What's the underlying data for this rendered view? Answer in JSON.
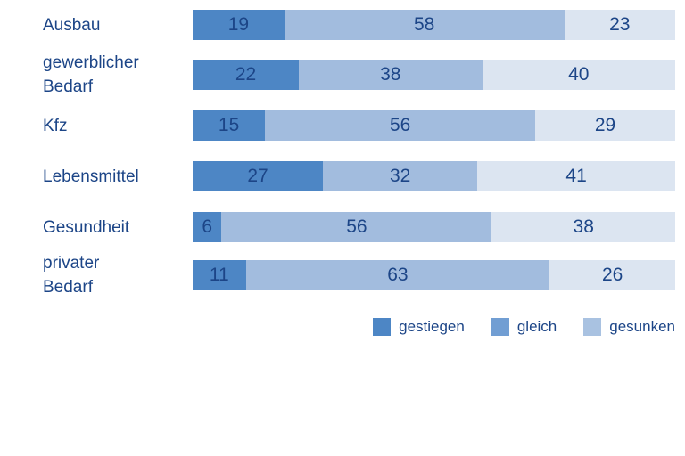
{
  "chart_data": {
    "type": "bar",
    "orientation": "horizontal",
    "stacked": true,
    "title": "",
    "xlabel": "",
    "ylabel": "",
    "xlim": [
      0,
      100
    ],
    "grid": false,
    "value_labels": "inside-center",
    "text_color": "#1c4587",
    "categories": [
      "Ausbau",
      "gewerblicher Bedarf",
      "Kfz",
      "Lebensmittel",
      "Gesundheit",
      "privater Bedarf"
    ],
    "category_label_lines": [
      [
        "Ausbau"
      ],
      [
        "gewerblicher",
        "Bedarf"
      ],
      [
        "Kfz"
      ],
      [
        "Lebensmittel"
      ],
      [
        "Gesundheit"
      ],
      [
        "privater",
        "Bedarf"
      ]
    ],
    "series": [
      {
        "name": "gestiegen",
        "color": "#4d86c5",
        "values": [
          19,
          22,
          15,
          27,
          6,
          11
        ]
      },
      {
        "name": "gleich",
        "color": "#a2bcde",
        "values": [
          58,
          38,
          56,
          32,
          56,
          63
        ]
      },
      {
        "name": "gesunken",
        "color": "#dce5f1",
        "values": [
          23,
          40,
          29,
          41,
          38,
          26
        ]
      }
    ],
    "legend": {
      "position": "bottom-right",
      "items": [
        {
          "label": "gestiegen",
          "color": "#4d86c5"
        },
        {
          "label": "gleich",
          "color": "#719ed3"
        },
        {
          "label": "gesunken",
          "color": "#a9c2e1"
        }
      ]
    }
  }
}
